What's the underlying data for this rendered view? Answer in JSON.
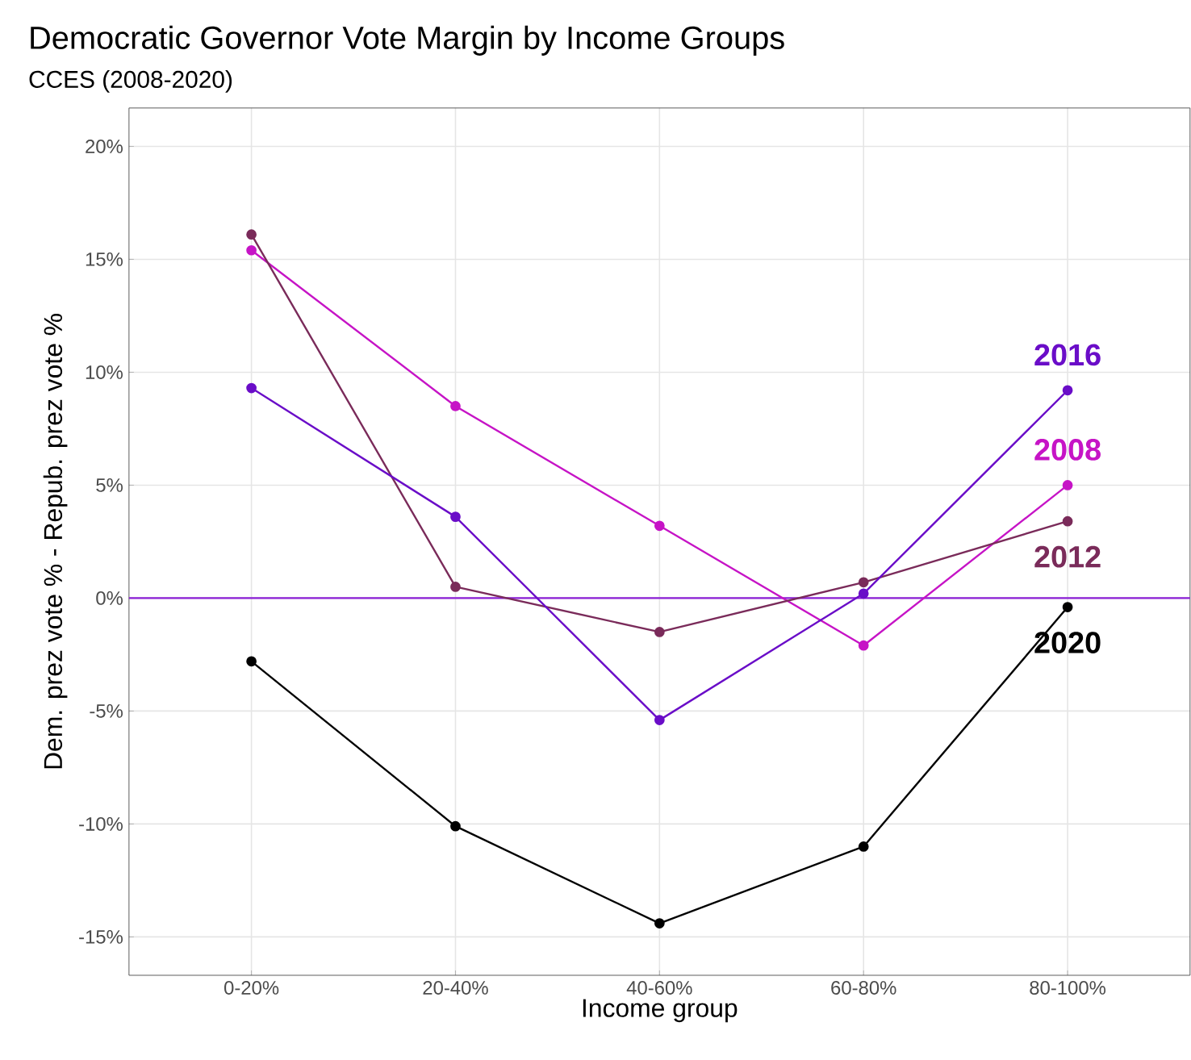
{
  "chart_data": {
    "type": "line",
    "title": "Democratic Governor Vote Margin by Income Groups",
    "subtitle": "CCES (2008-2020)",
    "xlabel": "Income group",
    "ylabel": "Dem. prez vote % - Repub. prez vote %",
    "categories": [
      "0-20%",
      "20-40%",
      "40-60%",
      "60-80%",
      "80-100%"
    ],
    "series": [
      {
        "name": "2008",
        "color": "#c614c6",
        "values": [
          15.4,
          8.5,
          3.2,
          -2.1,
          5.0
        ]
      },
      {
        "name": "2012",
        "color": "#7a2b5a",
        "values": [
          16.1,
          0.5,
          -1.5,
          0.7,
          3.4
        ]
      },
      {
        "name": "2016",
        "color": "#6a0dc8",
        "values": [
          9.3,
          3.6,
          -5.4,
          0.2,
          9.2
        ]
      },
      {
        "name": "2020",
        "color": "#000000",
        "values": [
          -2.8,
          -10.1,
          -14.4,
          -11.0,
          -0.4
        ]
      }
    ],
    "ylim": [
      -16.7,
      21.7
    ],
    "yticks": [
      {
        "value": -15,
        "label": "-15%"
      },
      {
        "value": -10,
        "label": "-10%"
      },
      {
        "value": -5,
        "label": "-5%"
      },
      {
        "value": 0,
        "label": "0%"
      },
      {
        "value": 5,
        "label": "5%"
      },
      {
        "value": 10,
        "label": "10%"
      },
      {
        "value": 15,
        "label": "15%"
      },
      {
        "value": 20,
        "label": "20%"
      }
    ],
    "ref_lines": [
      {
        "axis": "y",
        "value": 0,
        "color": "#8b1fd6"
      }
    ],
    "grid": true,
    "legend": false,
    "marker": "circle",
    "line_style": "solid"
  }
}
